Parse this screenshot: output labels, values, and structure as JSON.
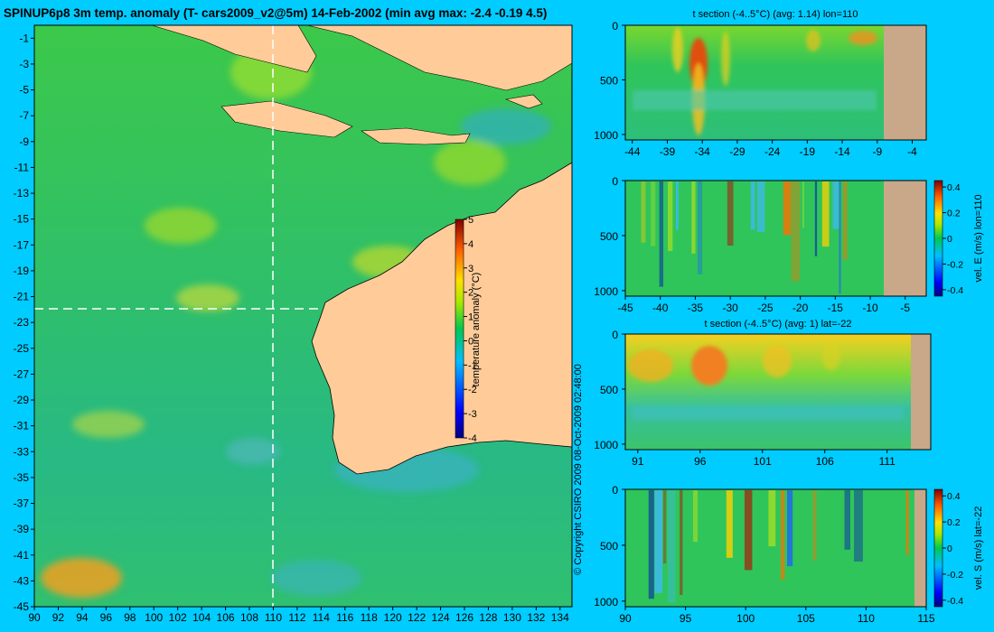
{
  "chart_data": [
    {
      "type": "heatmap",
      "title": "SPINUP6p8 3m temp. anomaly (T- cars2009_v2@5m) 14-Feb-2002 (min avg max: -2.4 -0.19 4.5)",
      "x_ticks": [
        "90",
        "92",
        "94",
        "96",
        "98",
        "100",
        "102",
        "104",
        "106",
        "108",
        "110",
        "112",
        "114",
        "116",
        "118",
        "120",
        "122",
        "124",
        "126",
        "128",
        "130",
        "132",
        "134"
      ],
      "y_ticks": [
        "-1",
        "-3",
        "-5",
        "-7",
        "-9",
        "-11",
        "-13",
        "-15",
        "-17",
        "-19",
        "-21",
        "-23",
        "-25",
        "-27",
        "-29",
        "-31",
        "-33",
        "-35",
        "-37",
        "-39",
        "-41",
        "-43",
        "-45"
      ],
      "xlim": [
        90,
        135
      ],
      "ylim": [
        -45,
        0
      ],
      "section_lon": 110,
      "section_lat": -22,
      "colorbar": {
        "label": "temperature anomaly (°C)",
        "ticks": [
          "5",
          "4",
          "3",
          "2",
          "1",
          "0",
          "-1",
          "-2",
          "-3",
          "-4"
        ],
        "range": [
          -4,
          5
        ]
      }
    },
    {
      "type": "heatmap",
      "title": "t section (-4..5°C) (avg: 1.14) lon=110",
      "x_ticks": [
        "-44",
        "-39",
        "-34",
        "-29",
        "-24",
        "-19",
        "-14",
        "-9",
        "-4"
      ],
      "y_ticks": [
        "0",
        "500",
        "1000"
      ],
      "xlim": [
        -45,
        -2
      ],
      "ylim": [
        1050,
        0
      ]
    },
    {
      "type": "heatmap",
      "title": "",
      "x_ticks": [
        "-45",
        "-40",
        "-35",
        "-30",
        "-25",
        "-20",
        "-15",
        "-10",
        "-5"
      ],
      "y_ticks": [
        "0",
        "500",
        "1000"
      ],
      "xlim": [
        -45,
        -2
      ],
      "ylim": [
        1050,
        0
      ],
      "colorbar": {
        "label": "vel. E (m/s) lon=110",
        "ticks": [
          "0.4",
          "0.2",
          "0",
          "-0.2",
          "-0.4"
        ],
        "range": [
          -0.45,
          0.45
        ]
      }
    },
    {
      "type": "heatmap",
      "title": "t section (-4..5°C) (avg: 1) lat=-22",
      "x_ticks": [
        "91",
        "96",
        "101",
        "106",
        "111"
      ],
      "y_ticks": [
        "0",
        "500",
        "1000"
      ],
      "xlim": [
        90,
        114.5
      ],
      "ylim": [
        1050,
        0
      ]
    },
    {
      "type": "heatmap",
      "title": "",
      "x_ticks": [
        "90",
        "95",
        "100",
        "105",
        "110",
        "115"
      ],
      "y_ticks": [
        "0",
        "500",
        "1000"
      ],
      "xlim": [
        90,
        115
      ],
      "ylim": [
        1050,
        0
      ],
      "colorbar": {
        "label": "vel. S (m/s) lat=-22",
        "ticks": [
          "0.4",
          "0.2",
          "0",
          "-0.2",
          "-0.4"
        ],
        "range": [
          -0.45,
          0.45
        ]
      }
    }
  ],
  "copyright": "© Copyright CSIRO 2009   08-Oct-2009 02:48:00"
}
